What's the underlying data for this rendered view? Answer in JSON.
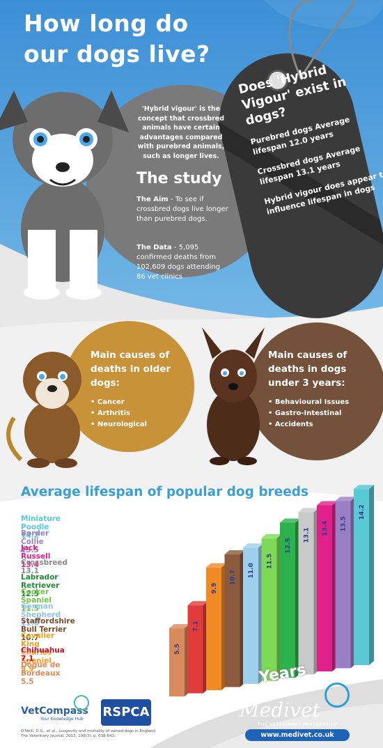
{
  "title_line1": "How long do",
  "title_line2": "our dogs live?",
  "intro": "'Hybrid vigour' is the concept that crossbred animals have certain advantages compared with purebred animals, such as longer lives.",
  "study": {
    "heading": "The study",
    "aim_label": "The Aim",
    "aim_text": " - To see if crossbred dogs live longer than purebred dogs.",
    "data_label": "The Data",
    "data_text": " - 5,095 confirmed deaths from 102,609 dogs attending 86 vet clinics"
  },
  "tag": {
    "heading": "Does 'Hybrid Vigour' exist in dogs?",
    "purebred": "Purebred dogs Average lifespan 12.0 years",
    "crossbred": "Crossbred dogs Average lifespan 13.1 years",
    "conclusion": "Hybrid vigour does appear to influence lifespan in dogs"
  },
  "older": {
    "heading": "Main causes of deaths in older dogs:",
    "items": [
      "Cancer",
      "Arthritis",
      "Neurological"
    ]
  },
  "young": {
    "heading": "Main causes of deaths in dogs under 3 years:",
    "items": [
      "Behavioural Issues",
      "Gastro-Intestinal",
      "Accidents"
    ]
  },
  "breeds_heading": "Average lifespan of popular dog breeds",
  "chart_data": {
    "type": "bar",
    "title": "Average lifespan of popular dog breeds",
    "xlabel": "Years",
    "categories": [
      "Dogue de Bordeaux",
      "Chihuahua",
      "Cavalier King Charles Spaniel",
      "Staffordshire Bull Terrier",
      "German Shepherd",
      "Cocker Spaniel",
      "Labrador Retriever",
      "Crossbreed",
      "Jack Russell",
      "Border Collie",
      "Miniature Poodle"
    ],
    "values": [
      5.5,
      7.1,
      9.9,
      10.7,
      11.0,
      11.5,
      12.5,
      13.1,
      13.4,
      13.5,
      14.2
    ],
    "value_labels": [
      "5.5",
      "7.1",
      "9.9",
      "10.7",
      "11.0",
      "11.5",
      "12.5",
      "13.1",
      "13.4",
      "13.5",
      "14.2"
    ],
    "colors": [
      "#d98a5b",
      "#e23b3b",
      "#f08a24",
      "#8c5a3c",
      "#9ecfec",
      "#7ed957",
      "#2bb24c",
      "#c9c9c9",
      "#e0218a",
      "#9b7fc5",
      "#5bc8d6"
    ]
  },
  "breed_list": [
    {
      "text": "Miniature Poodle 14.2",
      "color": "#5bc8d6"
    },
    {
      "text": "Border Collie 13.5",
      "color": "#9b7fc5"
    },
    {
      "text": "Jack Russell 13.4",
      "color": "#e0218a"
    },
    {
      "text": "Crossbreed 13.1",
      "color": "#8a8a8a"
    },
    {
      "text": "Labrador Retriever 12.5",
      "color": "#1f8a3a"
    },
    {
      "text": "Cocker Spaniel 11.5",
      "color": "#6cc644"
    },
    {
      "text": "German Shepherd 11.0",
      "color": "#8ec4e6"
    },
    {
      "text": "Staffordshire Bull Terrier 10.7",
      "color": "#7a4a2a"
    },
    {
      "text": "Cavalier King Charles Spaniel 9.9",
      "color": "#f0a020"
    },
    {
      "text": "Chihuahua 7.1",
      "color": "#c8102e"
    },
    {
      "text": "Dogue de Bordeaux 5.5",
      "color": "#d98a5b"
    }
  ],
  "years_label": "Years",
  "vetcompass": "VetCompass",
  "vetcompass_tag": "Your Knowledge Hub",
  "rspca": "RSPCA",
  "medivet": "Medivet",
  "medivet_tag": "THE VETERINARY PARTNERSHIP",
  "medivet_url": "www.medivet.co.uk",
  "citation": "O'Neill, D.G., et al., Longevity and mortality of owned dogs in England. The Veterinary Journal, 2013. 198(3): p. 638-643."
}
